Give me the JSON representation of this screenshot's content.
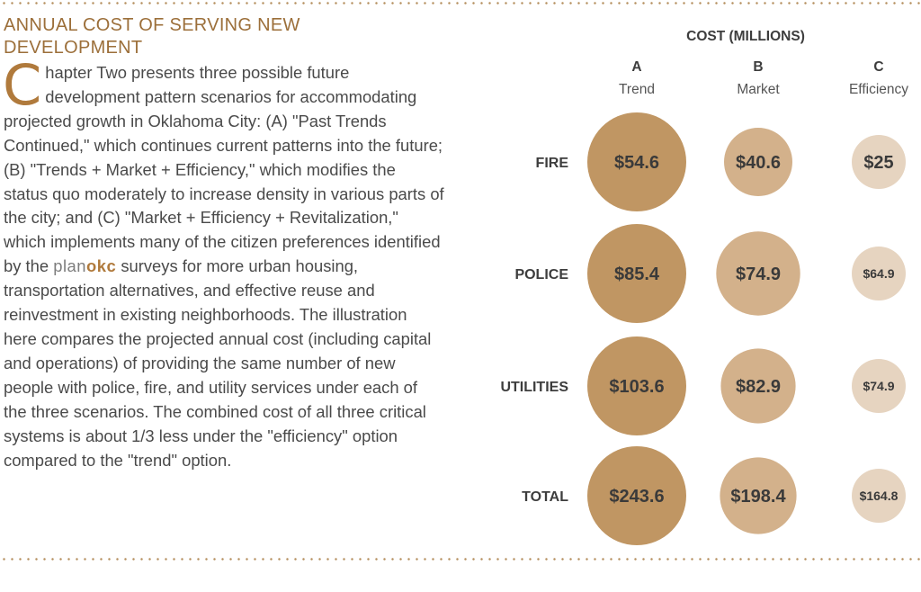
{
  "heading": "ANNUAL COST OF SERVING NEW DEVELOPMENT",
  "body": {
    "dropcap": "C",
    "p1": "hapter Two presents three possible future development pattern scenarios for accommodating projected growth in Oklahoma City: (A) \"Past Trends Continued,\" which continues current patterns into the future; (B) \"Trends + Market + Efficiency,\" which modifies the status quo moderately to increase density in various parts of the city; and (C) \"Market + Efficiency + Revitalization,\" which implements many of the citizen preferences identified by the ",
    "brand_plan": "plan",
    "brand_okc": "okc",
    "p2": " surveys for more urban housing, transportation alternatives, and effective reuse and reinvestment in existing neighborhoods. The illustration here compares the projected annual cost (including capital and operations) of providing the same number of new people with police, fire, and utility services under each of the three scenarios. The combined cost of all three critical systems is about 1/3 less under the \"efficiency\" option compared to the \"trend\" option."
  },
  "colors": {
    "A": "#c09663",
    "B": "#d3b18b",
    "C": "#e6d4c0",
    "heading": "#9c6f3a",
    "label": "#3d3d3d"
  },
  "chart_data": {
    "type": "bubble-matrix",
    "title": "COST (MILLIONS)",
    "columns": [
      {
        "letter": "A",
        "name": "Trend"
      },
      {
        "letter": "B",
        "name": "Market"
      },
      {
        "letter": "C",
        "name": "Efficiency"
      }
    ],
    "rows": [
      {
        "label": "FIRE",
        "values": [
          54.6,
          40.6,
          25
        ],
        "labels": [
          "$54.6",
          "$40.6",
          "$25"
        ]
      },
      {
        "label": "POLICE",
        "values": [
          85.4,
          74.9,
          64.9
        ],
        "labels": [
          "$85.4",
          "$74.9",
          "$64.9"
        ]
      },
      {
        "label": "UTILITIES",
        "values": [
          103.6,
          82.9,
          74.9
        ],
        "labels": [
          "$103.6",
          "$82.9",
          "$74.9"
        ]
      },
      {
        "label": "TOTAL",
        "values": [
          243.6,
          198.4,
          164.8
        ],
        "labels": [
          "$243.6",
          "$198.4",
          "$164.8"
        ]
      }
    ]
  }
}
